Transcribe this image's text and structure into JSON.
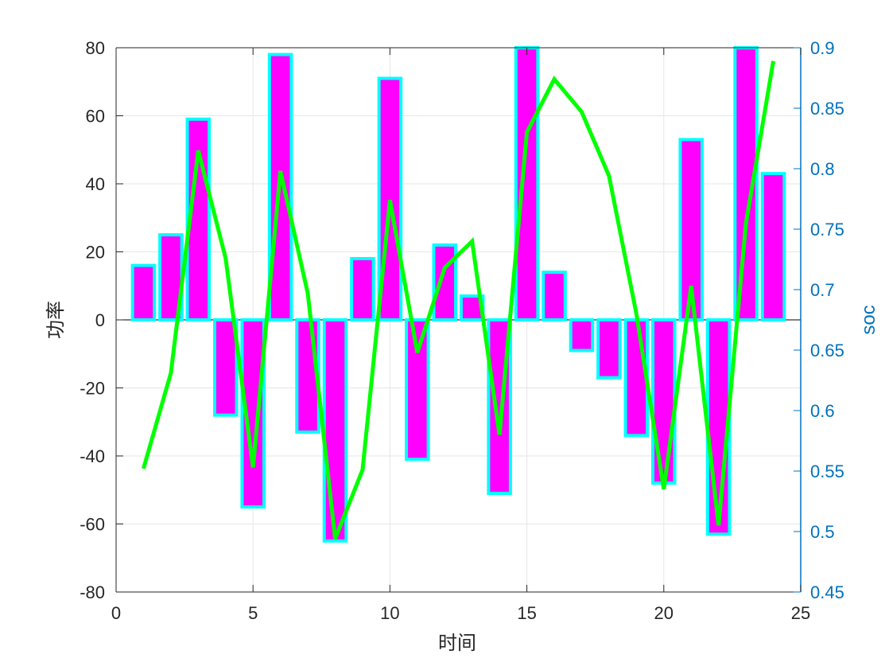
{
  "chart_data": {
    "type": "bar",
    "xlabel": "时间",
    "ylabel_left": "功率",
    "ylabel_right": "soc",
    "xlim": [
      0,
      25
    ],
    "ylim_left": [
      -80,
      80
    ],
    "ylim_right": [
      0.45,
      0.9
    ],
    "x_ticks": [
      "0",
      "5",
      "10",
      "15",
      "20",
      "25"
    ],
    "y_ticks_left": [
      "-80",
      "-60",
      "-40",
      "-20",
      "0",
      "20",
      "40",
      "60",
      "80"
    ],
    "y_ticks_right": [
      "0.45",
      "0.5",
      "0.55",
      "0.6",
      "0.65",
      "0.7",
      "0.75",
      "0.8",
      "0.85",
      "0.9"
    ],
    "grid": true,
    "x": [
      1,
      2,
      3,
      4,
      5,
      6,
      7,
      8,
      9,
      10,
      11,
      12,
      13,
      14,
      15,
      16,
      17,
      18,
      19,
      20,
      21,
      22,
      23,
      24
    ],
    "bar_series": {
      "axis": "left",
      "values": [
        16,
        25,
        59,
        -28,
        -55,
        78,
        -33,
        -65,
        18,
        71,
        -41,
        22,
        7,
        -51,
        80,
        14,
        -9,
        -17,
        -34,
        -48,
        53,
        -63,
        80,
        43
      ],
      "fill_color": "#ff00ff",
      "edge_color": "#00ffff"
    },
    "line_series": {
      "axis": "right",
      "values": [
        0.552,
        0.631,
        0.815,
        0.726,
        0.553,
        0.798,
        0.697,
        0.494,
        0.551,
        0.774,
        0.648,
        0.718,
        0.74,
        0.58,
        0.83,
        0.874,
        0.847,
        0.794,
        0.68,
        0.535,
        0.703,
        0.505,
        0.755,
        0.889
      ],
      "color": "#00ff00"
    },
    "colors": {
      "right_axis": "#0072bd",
      "grid": "#e6e6e6",
      "axis": "#262626"
    }
  }
}
